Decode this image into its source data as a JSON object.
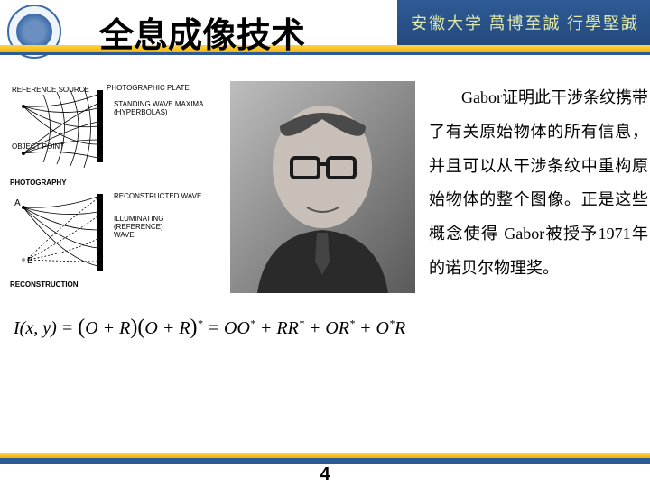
{
  "header": {
    "university_text": "安徽大学  萬博至誠 行學堅誠"
  },
  "title": "全息成像技术",
  "diagram": {
    "labels": {
      "reference_source": "REFERENCE SOURCE",
      "photographic_plate": "PHOTOGRAPHIC PLATE",
      "standing_wave": "STANDING WAVE MAXIMA (HYPERBOLAS)",
      "object_point": "OBJECT POINT",
      "photography": "PHOTOGRAPHY",
      "reconstructed_wave": "RECONSTRUCTED WAVE",
      "illuminating_wave": "ILLUMINATING (REFERENCE) WAVE",
      "a": "A",
      "b": "B",
      "reconstruction": "RECONSTRUCTION"
    }
  },
  "body_text": "Gabor证明此干涉条纹携带了有关原始物体的所有信息，并且可以从干涉条纹中重构原始物体的整个图像。正是这些概念使得 Gabor被授予1971年的诺贝尔物理奖。",
  "equation_html": "I(x, y) = <span class=\"paren\">(</span>O + R<span class=\"paren\">)(</span>O + R<span class=\"paren\">)</span><sup>*</sup> = OO<sup>*</sup> + RR<sup>*</sup> + OR<sup>*</sup> + O<sup>*</sup>R",
  "page_number": "4",
  "colors": {
    "header_blue": "#2e5a96",
    "accent_yellow": "#f5b400",
    "background": "#ffffff"
  }
}
